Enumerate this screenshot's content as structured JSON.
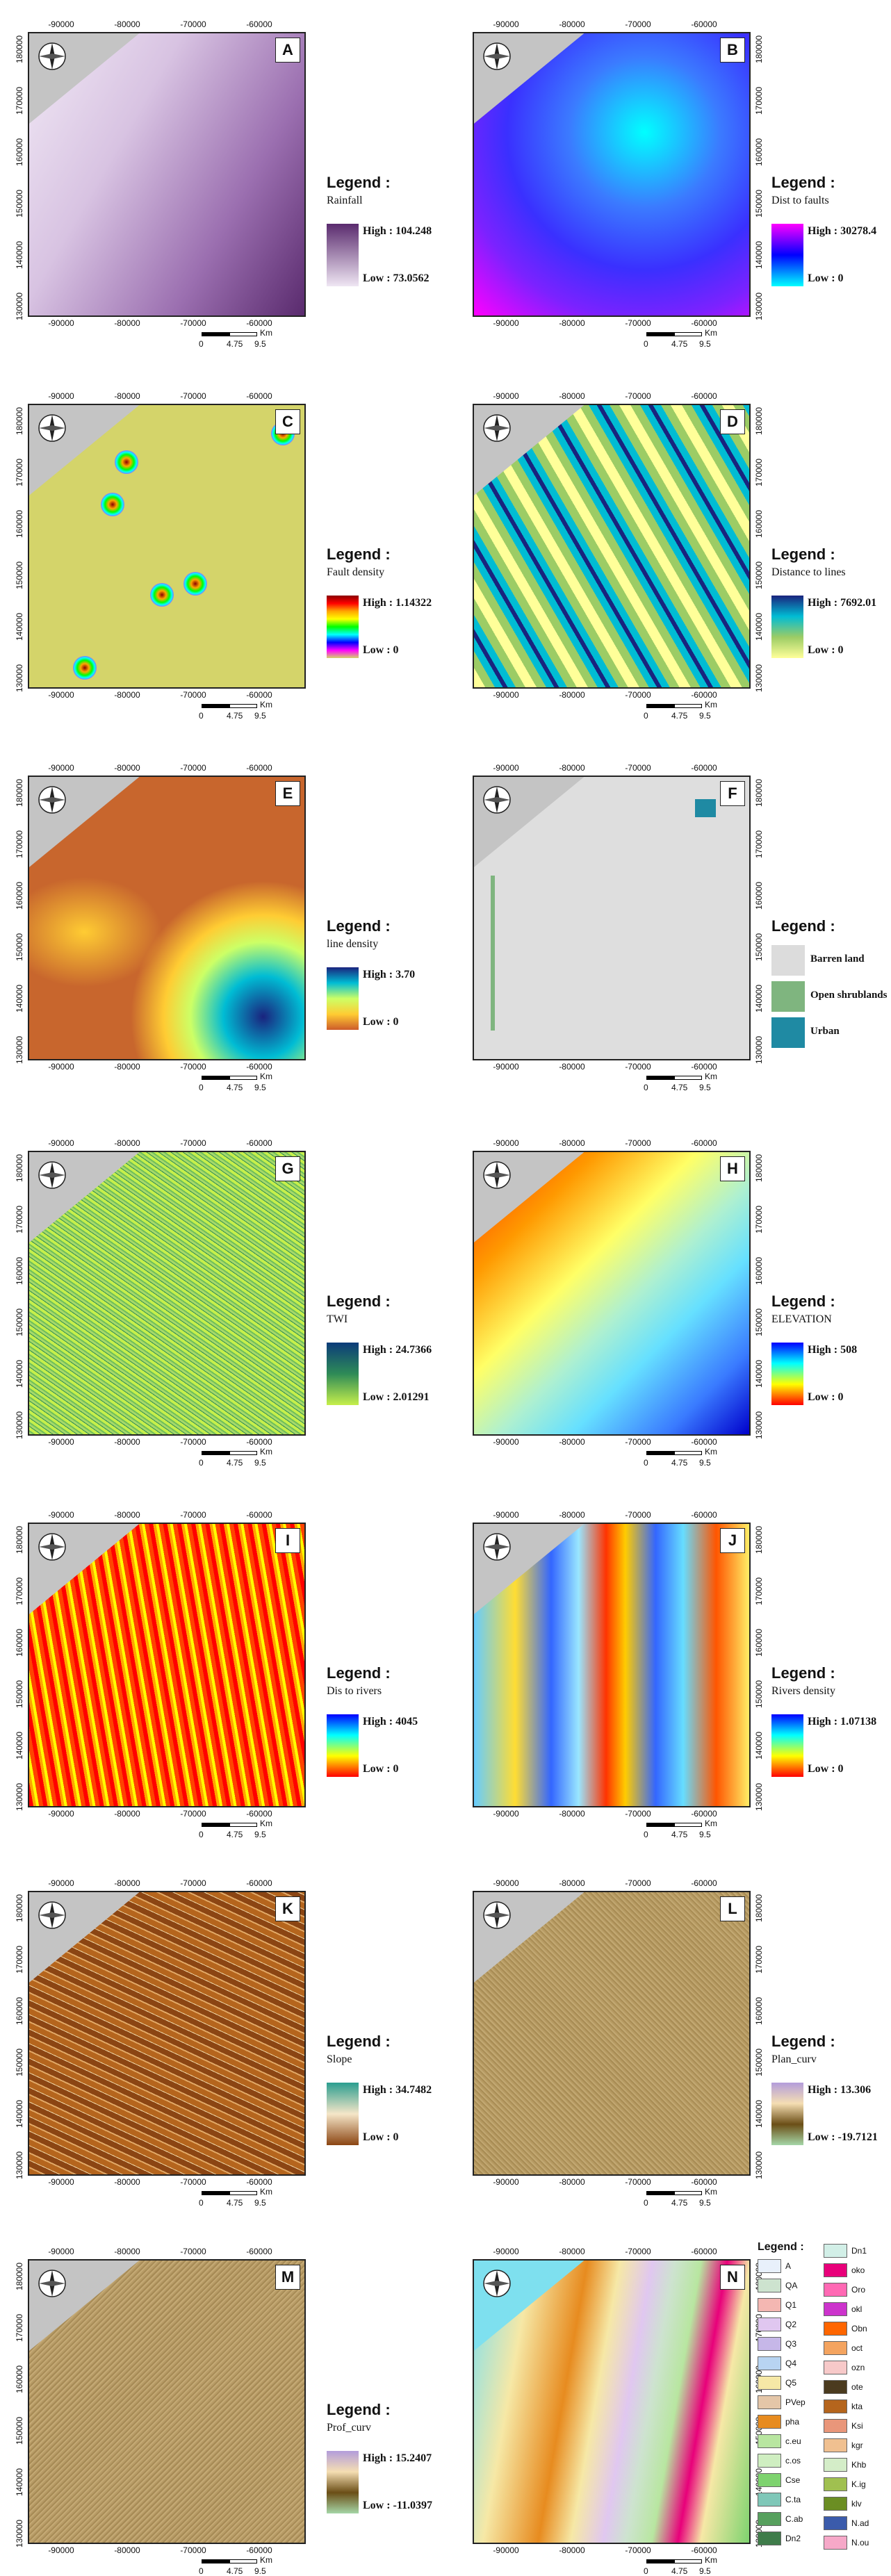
{
  "x_ticks": [
    "-90000",
    "-80000",
    "-70000",
    "-60000"
  ],
  "y_ticks": [
    "180000",
    "170000",
    "160000",
    "150000",
    "140000",
    "130000"
  ],
  "scale": {
    "labels": [
      "0",
      "4.75",
      "9.5"
    ],
    "unit": "Km"
  },
  "legend_title": "Legend :",
  "panels": [
    {
      "letter": "A",
      "name": "Rainfall",
      "high": "High : 104.248",
      "low": "Low : 73.0562",
      "colors": [
        "#5a2b6e",
        "#efe6f3"
      ]
    },
    {
      "letter": "B",
      "name": "Dist to faults",
      "high": "High : 30278.4",
      "low": "Low : 0",
      "colors": [
        "#ff00ff",
        "#0000ff",
        "#00ffff"
      ]
    },
    {
      "letter": "C",
      "name": "Fault density",
      "high": "High : 1.14322",
      "low": "Low : 0",
      "colors": [
        "#8b0000",
        "#ff0000",
        "#ffa500",
        "#ffff00",
        "#00ff00",
        "#00ffff",
        "#0000ff",
        "#ff00ff",
        "#d4d46a"
      ]
    },
    {
      "letter": "D",
      "name": "Distance to lines",
      "high": "High : 7692.01",
      "low": "Low : 0",
      "colors": [
        "#1a237e",
        "#00bcd4",
        "#9ccc65",
        "#ffff99"
      ]
    },
    {
      "letter": "E",
      "name": "line density",
      "high": "High : 3.70",
      "low": "Low : 0",
      "colors": [
        "#1a237e",
        "#00bcd4",
        "#ccff66",
        "#ffcc33",
        "#cd5c2a"
      ]
    },
    {
      "letter": "F",
      "name": "",
      "classes": [
        "Barren land",
        "Open shrublands",
        "Urban"
      ],
      "class_colors": [
        "#dcdcdc",
        "#7fb57f",
        "#1f8aa3"
      ]
    },
    {
      "letter": "G",
      "name": "TWI",
      "high": "High : 24.7366",
      "low": "Low : 2.01291",
      "colors": [
        "#0b3b7a",
        "#2e8b57",
        "#c6ef4b"
      ]
    },
    {
      "letter": "H",
      "name": "ELEVATION",
      "high": "High : 508",
      "low": "Low : 0",
      "colors": [
        "#0000ff",
        "#00ffff",
        "#ffff00",
        "#ff0000"
      ]
    },
    {
      "letter": "I",
      "name": "Dis to rivers",
      "high": "High : 4045",
      "low": "Low : 0",
      "colors": [
        "#0000ff",
        "#00ffff",
        "#ffff00",
        "#ff0000"
      ]
    },
    {
      "letter": "J",
      "name": "Rivers density",
      "high": "High : 1.07138",
      "low": "Low : 0",
      "colors": [
        "#0000ff",
        "#00ffff",
        "#ffff00",
        "#ff0000"
      ]
    },
    {
      "letter": "K",
      "name": "Slope",
      "high": "High : 34.7482",
      "low": "Low : 0",
      "colors": [
        "#2a9d8f",
        "#f5e6c8",
        "#8b4513"
      ]
    },
    {
      "letter": "L",
      "name": "Plan_curv",
      "high": "High : 13.306",
      "low": "Low : -19.7121",
      "colors": [
        "#b39ddb",
        "#f5deb3",
        "#6b4e16",
        "#a5d6a7"
      ]
    },
    {
      "letter": "M",
      "name": "Prof_curv",
      "high": "High : 15.2407",
      "low": "Low : -11.0397",
      "colors": [
        "#b39ddb",
        "#f5deb3",
        "#6b4e16",
        "#a5d6a7"
      ]
    },
    {
      "letter": "N",
      "name": ""
    }
  ],
  "geology_legend": {
    "col1": [
      "A",
      "QA",
      "Q1",
      "Q2",
      "Q3",
      "Q4",
      "Q5",
      "PVep",
      "pha",
      "c.eu",
      "c.os",
      "Cse",
      "C.ta",
      "C.ab",
      "Dn2"
    ],
    "col1_colors": [
      "#e8f0fb",
      "#cde3cf",
      "#f4b7b2",
      "#e0c7f0",
      "#c6b7e8",
      "#b8d4f2",
      "#f6e8a6",
      "#e4c6a8",
      "#e78b1f",
      "#b8e6a0",
      "#cfeec1",
      "#7ed36f",
      "#7fc7b8",
      "#57a05e",
      "#3f7c4a"
    ],
    "col2": [
      "Dn1",
      "oko",
      "Oro",
      "okl",
      "Obn",
      "oct",
      "ozn",
      "ote",
      "kta",
      "Ksi",
      "kgr",
      "Khb",
      "K.ig",
      "klv",
      "N.ad",
      "N.ou"
    ],
    "col2_colors": [
      "#d2efe7",
      "#e8007a",
      "#ff69b4",
      "#cc33cc",
      "#ff6600",
      "#f4a460",
      "#f7c9c9",
      "#4b3b1f",
      "#b5651d",
      "#e9967a",
      "#f0c090",
      "#d4edc8",
      "#a0c050",
      "#6b8e23",
      "#3b5bab",
      "#f6a8c8"
    ]
  }
}
